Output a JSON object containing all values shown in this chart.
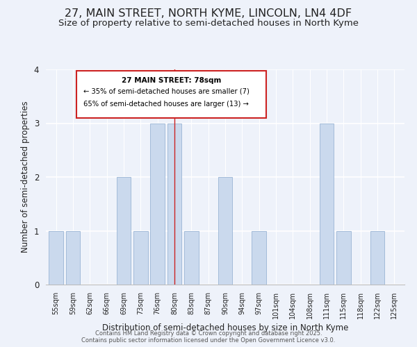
{
  "title": "27, MAIN STREET, NORTH KYME, LINCOLN, LN4 4DF",
  "subtitle": "Size of property relative to semi-detached houses in North Kyme",
  "xlabel": "Distribution of semi-detached houses by size in North Kyme",
  "ylabel": "Number of semi-detached properties",
  "categories": [
    "55sqm",
    "59sqm",
    "62sqm",
    "66sqm",
    "69sqm",
    "73sqm",
    "76sqm",
    "80sqm",
    "83sqm",
    "87sqm",
    "90sqm",
    "94sqm",
    "97sqm",
    "101sqm",
    "104sqm",
    "108sqm",
    "111sqm",
    "115sqm",
    "118sqm",
    "122sqm",
    "125sqm"
  ],
  "values": [
    1,
    1,
    0,
    0,
    2,
    1,
    3,
    3,
    1,
    0,
    2,
    0,
    1,
    0,
    0,
    0,
    3,
    1,
    0,
    1,
    0
  ],
  "highlight_index": 7,
  "bar_color_normal": "#cad9ed",
  "background_color": "#eef2fa",
  "annotation_title": "27 MAIN STREET: 78sqm",
  "annotation_line1": "← 35% of semi-detached houses are smaller (7)",
  "annotation_line2": "65% of semi-detached houses are larger (13) →",
  "ylim": [
    0,
    4
  ],
  "yticks": [
    0,
    1,
    2,
    3,
    4
  ],
  "footer1": "Contains HM Land Registry data © Crown copyright and database right 2025.",
  "footer2": "Contains public sector information licensed under the Open Government Licence v3.0.",
  "title_fontsize": 11.5,
  "subtitle_fontsize": 9.5,
  "bar_edgecolor": "#9ab5d5"
}
